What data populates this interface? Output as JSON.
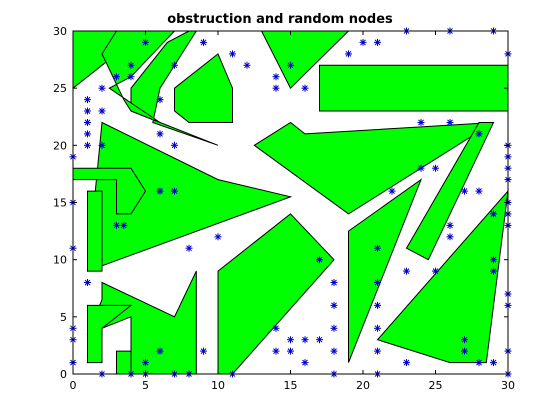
{
  "chart_data": {
    "type": "scatter",
    "title": "obstruction and random nodes",
    "xlabel": "",
    "ylabel": "",
    "xlim": [
      0,
      30
    ],
    "ylim": [
      0,
      30
    ],
    "x_ticks": [
      0,
      5,
      10,
      15,
      20,
      25,
      30
    ],
    "y_ticks": [
      0,
      5,
      10,
      15,
      20,
      25,
      30
    ],
    "grid": false,
    "obstacle_color": "#00ff00",
    "node_color": "#0000cc",
    "node_marker": "asterisk",
    "obstacles": [
      [
        [
          0,
          25
        ],
        [
          0,
          30
        ],
        [
          5,
          30
        ]
      ],
      [
        [
          4,
          23
        ],
        [
          4,
          25
        ],
        [
          6.5,
          29
        ],
        [
          8,
          30
        ],
        [
          8.5,
          30
        ],
        [
          6,
          25
        ],
        [
          5.5,
          22
        ],
        [
          10,
          20
        ]
      ],
      [
        [
          4,
          26
        ],
        [
          7,
          30
        ],
        [
          3,
          30
        ],
        [
          2,
          28
        ],
        [
          3.5,
          24
        ],
        [
          4,
          23
        ],
        [
          6,
          22
        ],
        [
          2.5,
          25
        ]
      ],
      [
        [
          7,
          25
        ],
        [
          10,
          28
        ],
        [
          11,
          25
        ],
        [
          11,
          22
        ],
        [
          8,
          22
        ],
        [
          7,
          23
        ]
      ],
      [
        [
          13,
          30
        ],
        [
          19,
          30
        ],
        [
          15,
          25
        ]
      ],
      [
        [
          17,
          23
        ],
        [
          17,
          27
        ],
        [
          30,
          27
        ],
        [
          30,
          23
        ]
      ],
      [
        [
          2,
          22
        ],
        [
          10,
          17
        ],
        [
          15,
          15.5
        ],
        [
          1,
          9
        ]
      ],
      [
        [
          12.5,
          20
        ],
        [
          15,
          22
        ],
        [
          16,
          21
        ],
        [
          29,
          22
        ],
        [
          19,
          14
        ]
      ],
      [
        [
          23,
          11
        ],
        [
          28,
          22
        ],
        [
          29,
          22
        ],
        [
          24.5,
          10
        ]
      ],
      [
        [
          0,
          17
        ],
        [
          0,
          18
        ],
        [
          4,
          18
        ],
        [
          5,
          16
        ],
        [
          4,
          14
        ],
        [
          3,
          14
        ],
        [
          3,
          17
        ]
      ],
      [
        [
          1,
          10
        ],
        [
          1,
          16
        ],
        [
          2,
          16
        ],
        [
          2,
          9
        ],
        [
          1,
          9
        ]
      ],
      [
        [
          19,
          12.5
        ],
        [
          24,
          17
        ],
        [
          19,
          1
        ]
      ],
      [
        [
          15,
          14
        ],
        [
          10,
          9
        ],
        [
          10,
          0
        ],
        [
          11,
          0
        ],
        [
          18,
          10
        ]
      ],
      [
        [
          2,
          8
        ],
        [
          7,
          5
        ],
        [
          8.5,
          9
        ],
        [
          8.5,
          0
        ],
        [
          4,
          0
        ],
        [
          4,
          5
        ],
        [
          1,
          3.5
        ],
        [
          2,
          6.5
        ]
      ],
      [
        [
          1,
          1
        ],
        [
          1,
          6
        ],
        [
          4,
          6
        ],
        [
          2,
          4
        ],
        [
          2,
          1
        ]
      ],
      [
        [
          3,
          0
        ],
        [
          3,
          2
        ],
        [
          4,
          2
        ],
        [
          4,
          0
        ]
      ],
      [
        [
          21,
          3
        ],
        [
          26,
          1
        ],
        [
          28.5,
          1
        ],
        [
          30,
          16
        ]
      ]
    ],
    "nodes": [
      [
        0,
        19
      ],
      [
        0,
        15
      ],
      [
        0,
        11
      ],
      [
        0,
        4
      ],
      [
        0,
        3
      ],
      [
        0,
        1
      ],
      [
        1,
        24
      ],
      [
        1,
        23
      ],
      [
        1,
        22
      ],
      [
        1,
        21
      ],
      [
        1,
        20
      ],
      [
        1,
        8
      ],
      [
        2,
        25
      ],
      [
        2,
        23
      ],
      [
        2,
        20
      ],
      [
        2,
        0
      ],
      [
        3,
        26
      ],
      [
        3,
        13
      ],
      [
        3.5,
        13
      ],
      [
        4,
        27
      ],
      [
        4,
        26
      ],
      [
        4,
        0
      ],
      [
        5,
        29
      ],
      [
        5,
        1
      ],
      [
        5,
        0
      ],
      [
        6,
        24
      ],
      [
        6,
        21
      ],
      [
        6,
        16
      ],
      [
        6,
        2
      ],
      [
        7,
        27
      ],
      [
        7,
        20
      ],
      [
        7,
        16
      ],
      [
        7,
        0
      ],
      [
        8,
        11
      ],
      [
        8,
        0
      ],
      [
        9,
        29
      ],
      [
        9,
        2
      ],
      [
        10,
        12
      ],
      [
        11,
        28
      ],
      [
        11,
        0
      ],
      [
        12,
        27
      ],
      [
        14,
        26
      ],
      [
        14,
        25
      ],
      [
        14,
        4
      ],
      [
        14,
        2
      ],
      [
        15,
        27
      ],
      [
        15,
        3
      ],
      [
        15,
        2
      ],
      [
        16,
        25
      ],
      [
        16,
        3
      ],
      [
        16,
        1
      ],
      [
        17,
        3
      ],
      [
        17,
        10
      ],
      [
        18,
        8
      ],
      [
        18,
        6
      ],
      [
        18,
        4
      ],
      [
        18,
        2
      ],
      [
        18,
        0
      ],
      [
        19,
        28
      ],
      [
        20,
        29
      ],
      [
        21,
        29
      ],
      [
        21,
        11
      ],
      [
        21,
        8
      ],
      [
        21,
        6
      ],
      [
        21,
        4
      ],
      [
        21,
        2
      ],
      [
        21,
        0
      ],
      [
        22,
        16
      ],
      [
        23,
        30
      ],
      [
        23,
        9
      ],
      [
        23,
        1
      ],
      [
        24,
        22
      ],
      [
        24,
        18
      ],
      [
        25,
        18
      ],
      [
        25,
        9
      ],
      [
        26,
        30
      ],
      [
        26,
        22
      ],
      [
        26,
        13
      ],
      [
        26,
        12
      ],
      [
        27,
        16
      ],
      [
        27,
        3
      ],
      [
        27,
        2
      ],
      [
        28,
        21
      ],
      [
        28,
        16
      ],
      [
        28,
        1
      ],
      [
        29,
        30
      ],
      [
        29,
        14
      ],
      [
        29,
        10
      ],
      [
        29,
        9
      ],
      [
        29,
        1
      ],
      [
        30,
        28
      ],
      [
        30,
        20
      ],
      [
        30,
        19
      ],
      [
        30,
        18
      ],
      [
        30,
        17
      ],
      [
        30,
        15
      ],
      [
        30,
        14
      ],
      [
        30,
        13
      ],
      [
        30,
        7
      ],
      [
        30,
        6
      ],
      [
        30,
        2
      ],
      [
        30,
        0
      ]
    ]
  }
}
